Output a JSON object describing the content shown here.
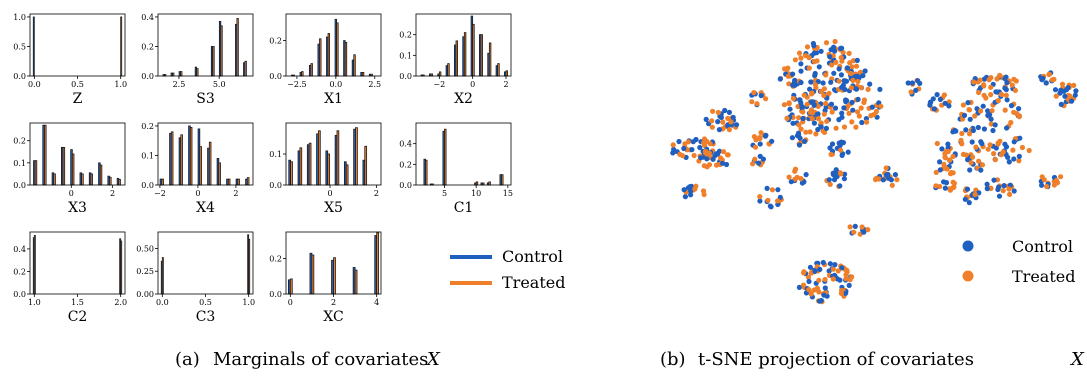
{
  "colors": {
    "control": "#1f5fbf",
    "treated": "#f07f2a",
    "edge": "#1a1a1a"
  },
  "captions": {
    "a_label": "(a)",
    "a_text": "Marginals of covariates",
    "a_var": "X",
    "b_label": "(b)",
    "b_text": "t-SNE projection of covariates",
    "b_var": "X"
  },
  "legend_a": {
    "control": "Control",
    "treated": "Treated"
  },
  "legend_b": {
    "control": "Control",
    "treated": "Treated"
  },
  "chart_data": [
    {
      "type": "bar",
      "name": "Z",
      "xlabel": "Z",
      "xlim": [
        -0.05,
        1.05
      ],
      "ylim": [
        0,
        1.05
      ],
      "xticks": [
        0.0,
        0.5,
        1.0
      ],
      "xticklabels": [
        "0.0",
        "0.5",
        "1.0"
      ],
      "yticks": [
        0.0,
        0.5,
        1.0
      ],
      "yticklabels": [
        "0.0",
        "0.5",
        "1.0"
      ],
      "barwidth": 0.012,
      "x": [
        0,
        1
      ],
      "series": [
        {
          "name": "Control",
          "values": [
            1.0,
            0.0
          ]
        },
        {
          "name": "Treated",
          "values": [
            0.0,
            1.0
          ]
        }
      ]
    },
    {
      "type": "bar",
      "name": "S3",
      "xlabel": "S3",
      "xlim": [
        1.2,
        7.1
      ],
      "ylim": [
        0,
        0.42
      ],
      "xticks": [
        2.5,
        5.0
      ],
      "xticklabels": [
        "2.5",
        "5.0"
      ],
      "yticks": [
        0.0,
        0.2,
        0.4
      ],
      "yticklabels": [
        "0.0",
        "0.2",
        "0.4"
      ],
      "barwidth": 0.09,
      "x": [
        1.6,
        2.1,
        2.6,
        3.6,
        4.6,
        5.1,
        6.1,
        6.6
      ],
      "series": [
        {
          "name": "Control",
          "values": [
            0.01,
            0.02,
            0.03,
            0.06,
            0.2,
            0.37,
            0.35,
            0.09
          ]
        },
        {
          "name": "Treated",
          "values": [
            0.01,
            0.02,
            0.03,
            0.05,
            0.2,
            0.34,
            0.39,
            0.1
          ]
        }
      ]
    },
    {
      "type": "bar",
      "name": "X1",
      "xlabel": "X1",
      "xlim": [
        -3.2,
        2.9
      ],
      "ylim": [
        0,
        0.35
      ],
      "xticks": [
        -2.5,
        0.0,
        2.5
      ],
      "xticklabels": [
        "−2.5",
        "0.0",
        "2.5"
      ],
      "yticks": [
        0.0,
        0.2
      ],
      "yticklabels": [
        "0.0",
        "0.2"
      ],
      "barwidth": 0.1,
      "x": [
        -2.75,
        -2.2,
        -1.6,
        -1.05,
        -0.5,
        0.05,
        0.6,
        1.15,
        1.7,
        2.25
      ],
      "series": [
        {
          "name": "Control",
          "values": [
            0.005,
            0.02,
            0.06,
            0.18,
            0.22,
            0.32,
            0.2,
            0.09,
            0.02,
            0.01
          ]
        },
        {
          "name": "Treated",
          "values": [
            0.005,
            0.025,
            0.07,
            0.21,
            0.24,
            0.3,
            0.19,
            0.12,
            0.02,
            0.01
          ]
        }
      ]
    },
    {
      "type": "bar",
      "name": "X2",
      "xlabel": "X2",
      "xlim": [
        -3.4,
        2.3
      ],
      "ylim": [
        0,
        0.3
      ],
      "xticks": [
        -2,
        0,
        2
      ],
      "xticklabels": [
        "−2",
        "0",
        "2"
      ],
      "yticks": [
        0.0,
        0.1,
        0.2
      ],
      "yticklabels": [
        "0.0",
        "0.1",
        "0.2"
      ],
      "barwidth": 0.095,
      "x": [
        -3.0,
        -2.5,
        -2.0,
        -1.5,
        -1.0,
        -0.5,
        0.0,
        0.5,
        1.0,
        1.5,
        2.0
      ],
      "series": [
        {
          "name": "Control",
          "values": [
            0.005,
            0.01,
            0.01,
            0.05,
            0.15,
            0.19,
            0.29,
            0.2,
            0.11,
            0.05,
            0.02
          ]
        },
        {
          "name": "Treated",
          "values": [
            0.005,
            0.01,
            0.02,
            0.06,
            0.17,
            0.21,
            0.25,
            0.2,
            0.16,
            0.06,
            0.025
          ]
        }
      ]
    },
    {
      "type": "bar",
      "name": "X3",
      "xlabel": "X3",
      "xlim": [
        -2.0,
        2.6
      ],
      "ylim": [
        0,
        0.28
      ],
      "xticks": [
        0,
        2
      ],
      "xticklabels": [
        "0",
        "2"
      ],
      "yticks": [
        0.0,
        0.1,
        0.2
      ],
      "yticklabels": [
        "0.0",
        "0.1",
        "0.2"
      ],
      "barwidth": 0.08,
      "x": [
        -1.75,
        -1.3,
        -0.85,
        -0.4,
        0.05,
        0.5,
        0.95,
        1.4,
        1.85,
        2.3
      ],
      "series": [
        {
          "name": "Control",
          "values": [
            0.11,
            0.27,
            0.055,
            0.17,
            0.16,
            0.055,
            0.055,
            0.1,
            0.04,
            0.03
          ]
        },
        {
          "name": "Treated",
          "values": [
            0.11,
            0.27,
            0.05,
            0.17,
            0.14,
            0.05,
            0.05,
            0.09,
            0.035,
            0.025
          ]
        }
      ]
    },
    {
      "type": "bar",
      "name": "X4",
      "xlabel": "X4",
      "xlim": [
        -2.1,
        2.9
      ],
      "ylim": [
        0,
        0.21
      ],
      "xticks": [
        -2,
        0,
        2
      ],
      "xticklabels": [
        "−2",
        "0",
        "2"
      ],
      "yticks": [
        0.0,
        0.1,
        0.2
      ],
      "yticklabels": [
        "0.0",
        "0.1",
        "0.2"
      ],
      "barwidth": 0.09,
      "x": [
        -1.9,
        -1.4,
        -0.9,
        -0.4,
        0.1,
        0.6,
        1.1,
        1.6,
        2.1,
        2.6
      ],
      "series": [
        {
          "name": "Control",
          "values": [
            0.02,
            0.175,
            0.16,
            0.2,
            0.19,
            0.125,
            0.09,
            0.02,
            0.02,
            0.02
          ]
        },
        {
          "name": "Treated",
          "values": [
            0.02,
            0.18,
            0.17,
            0.195,
            0.13,
            0.145,
            0.075,
            0.02,
            0.02,
            0.025
          ]
        }
      ]
    },
    {
      "type": "bar",
      "name": "X5",
      "xlabel": "X5",
      "xlim": [
        -1.9,
        2.2
      ],
      "ylim": [
        0,
        0.2
      ],
      "xticks": [
        0,
        2
      ],
      "xticklabels": [
        "0",
        "2"
      ],
      "yticks": [
        0.0,
        0.1
      ],
      "yticklabels": [
        "0.0",
        "0.1"
      ],
      "barwidth": 0.08,
      "x": [
        -1.7,
        -1.3,
        -0.9,
        -0.5,
        -0.1,
        0.3,
        0.7,
        1.1,
        1.5
      ],
      "series": [
        {
          "name": "Control",
          "values": [
            0.08,
            0.11,
            0.13,
            0.165,
            0.11,
            0.16,
            0.075,
            0.18,
            0.08
          ]
        },
        {
          "name": "Treated",
          "values": [
            0.075,
            0.12,
            0.135,
            0.175,
            0.1,
            0.175,
            0.065,
            0.185,
            0.125
          ]
        }
      ]
    },
    {
      "type": "bar",
      "name": "C1",
      "xlabel": "C1",
      "xlim": [
        0.5,
        15.5
      ],
      "ylim": [
        0,
        0.6
      ],
      "xticks": [
        5,
        10,
        15
      ],
      "xticklabels": [
        "5",
        "10",
        "15"
      ],
      "yticks": [
        0.0,
        0.2,
        0.4
      ],
      "yticklabels": [
        "0.0",
        "0.2",
        "0.4"
      ],
      "barwidth": 0.25,
      "x": [
        2,
        3,
        5,
        10,
        11,
        12,
        14
      ],
      "series": [
        {
          "name": "Control",
          "values": [
            0.25,
            0.01,
            0.52,
            0.02,
            0.02,
            0.02,
            0.1
          ]
        },
        {
          "name": "Treated",
          "values": [
            0.24,
            0.01,
            0.54,
            0.03,
            0.02,
            0.03,
            0.1
          ]
        }
      ]
    },
    {
      "type": "bar",
      "name": "C2",
      "xlabel": "C2",
      "xlim": [
        0.95,
        2.05
      ],
      "ylim": [
        0,
        0.55
      ],
      "xticks": [
        1.0,
        1.5,
        2.0
      ],
      "xticklabels": [
        "1.0",
        "1.5",
        "2.0"
      ],
      "yticks": [
        0.0,
        0.2,
        0.4
      ],
      "yticklabels": [
        "0.0",
        "0.2",
        "0.4"
      ],
      "barwidth": 0.012,
      "x": [
        1.0,
        2.0
      ],
      "series": [
        {
          "name": "Control",
          "values": [
            0.5,
            0.49
          ]
        },
        {
          "name": "Treated",
          "values": [
            0.52,
            0.47
          ]
        }
      ]
    },
    {
      "type": "bar",
      "name": "C3",
      "xlabel": "C3",
      "xlim": [
        -0.05,
        1.05
      ],
      "ylim": [
        0,
        0.68
      ],
      "xticks": [
        0.0,
        0.5,
        1.0
      ],
      "xticklabels": [
        "0.0",
        "0.5",
        "1.0"
      ],
      "yticks": [
        0.0,
        0.25,
        0.5
      ],
      "yticklabels": [
        "0.00",
        "0.25",
        "0.50"
      ],
      "barwidth": 0.012,
      "x": [
        0.0,
        1.0
      ],
      "series": [
        {
          "name": "Control",
          "values": [
            0.36,
            0.65
          ]
        },
        {
          "name": "Treated",
          "values": [
            0.4,
            0.6
          ]
        }
      ]
    },
    {
      "type": "bar",
      "name": "XC",
      "xlabel": "XC",
      "xlim": [
        -0.2,
        4.2
      ],
      "ylim": [
        0,
        0.35
      ],
      "xticks": [
        0,
        2,
        4
      ],
      "xticklabels": [
        "0",
        "2",
        "4"
      ],
      "yticks": [
        0.0,
        0.2
      ],
      "yticklabels": [
        "0.0",
        "0.2"
      ],
      "barwidth": 0.09,
      "x": [
        0,
        1,
        2,
        3,
        4
      ],
      "series": [
        {
          "name": "Control",
          "values": [
            0.08,
            0.23,
            0.19,
            0.15,
            0.33
          ]
        },
        {
          "name": "Treated",
          "values": [
            0.085,
            0.22,
            0.205,
            0.135,
            0.345
          ]
        }
      ]
    },
    {
      "type": "scatter",
      "name": "t-SNE",
      "clusters": [
        {
          "cx": 825,
          "cy": 80,
          "rx": 38,
          "ry": 40,
          "n": 160
        },
        {
          "cx": 785,
          "cy": 75,
          "rx": 10,
          "ry": 8,
          "n": 10
        },
        {
          "cx": 760,
          "cy": 98,
          "rx": 10,
          "ry": 8,
          "n": 10
        },
        {
          "cx": 720,
          "cy": 118,
          "rx": 14,
          "ry": 12,
          "n": 20
        },
        {
          "cx": 798,
          "cy": 110,
          "rx": 20,
          "ry": 14,
          "n": 26
        },
        {
          "cx": 820,
          "cy": 123,
          "rx": 28,
          "ry": 12,
          "n": 30
        },
        {
          "cx": 862,
          "cy": 100,
          "rx": 22,
          "ry": 30,
          "n": 40
        },
        {
          "cx": 912,
          "cy": 85,
          "rx": 8,
          "ry": 9,
          "n": 10
        },
        {
          "cx": 940,
          "cy": 104,
          "rx": 12,
          "ry": 10,
          "n": 14
        },
        {
          "cx": 995,
          "cy": 85,
          "rx": 24,
          "ry": 12,
          "n": 40
        },
        {
          "cx": 1048,
          "cy": 78,
          "rx": 8,
          "ry": 6,
          "n": 12
        },
        {
          "cx": 1066,
          "cy": 94,
          "rx": 12,
          "ry": 12,
          "n": 25
        },
        {
          "cx": 985,
          "cy": 112,
          "rx": 40,
          "ry": 20,
          "n": 50
        },
        {
          "cx": 962,
          "cy": 142,
          "rx": 25,
          "ry": 14,
          "n": 30
        },
        {
          "cx": 1010,
          "cy": 150,
          "rx": 22,
          "ry": 14,
          "n": 30
        },
        {
          "cx": 945,
          "cy": 165,
          "rx": 12,
          "ry": 12,
          "n": 18
        },
        {
          "cx": 973,
          "cy": 165,
          "rx": 12,
          "ry": 8,
          "n": 14
        },
        {
          "cx": 945,
          "cy": 185,
          "rx": 10,
          "ry": 8,
          "n": 12
        },
        {
          "cx": 972,
          "cy": 195,
          "rx": 10,
          "ry": 8,
          "n": 14
        },
        {
          "cx": 1000,
          "cy": 188,
          "rx": 15,
          "ry": 10,
          "n": 20
        },
        {
          "cx": 1050,
          "cy": 180,
          "rx": 12,
          "ry": 8,
          "n": 14
        },
        {
          "cx": 735,
          "cy": 128,
          "rx": 8,
          "ry": 8,
          "n": 8
        },
        {
          "cx": 695,
          "cy": 150,
          "rx": 25,
          "ry": 12,
          "n": 40
        },
        {
          "cx": 715,
          "cy": 160,
          "rx": 20,
          "ry": 10,
          "n": 24
        },
        {
          "cx": 760,
          "cy": 140,
          "rx": 12,
          "ry": 8,
          "n": 14
        },
        {
          "cx": 800,
          "cy": 140,
          "rx": 8,
          "ry": 8,
          "n": 10
        },
        {
          "cx": 840,
          "cy": 150,
          "rx": 12,
          "ry": 8,
          "n": 14
        },
        {
          "cx": 760,
          "cy": 162,
          "rx": 8,
          "ry": 6,
          "n": 8
        },
        {
          "cx": 797,
          "cy": 177,
          "rx": 10,
          "ry": 8,
          "n": 12
        },
        {
          "cx": 836,
          "cy": 177,
          "rx": 10,
          "ry": 10,
          "n": 16
        },
        {
          "cx": 886,
          "cy": 177,
          "rx": 12,
          "ry": 10,
          "n": 18
        },
        {
          "cx": 693,
          "cy": 192,
          "rx": 14,
          "ry": 6,
          "n": 14
        },
        {
          "cx": 770,
          "cy": 197,
          "rx": 12,
          "ry": 10,
          "n": 14
        },
        {
          "cx": 858,
          "cy": 230,
          "rx": 14,
          "ry": 5,
          "n": 10
        },
        {
          "cx": 826,
          "cy": 282,
          "rx": 28,
          "ry": 20,
          "n": 80
        }
      ]
    }
  ]
}
